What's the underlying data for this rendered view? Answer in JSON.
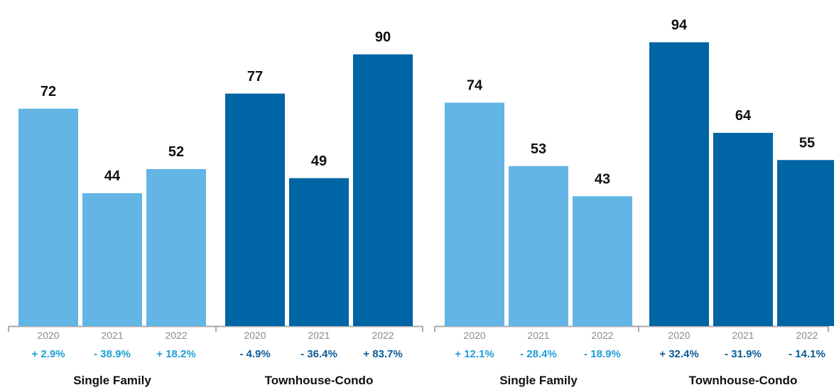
{
  "colors": {
    "single_family": "#62b5e5",
    "townhouse_condo": "#0065a4",
    "axis": "#aaaaaa"
  },
  "chart_data": [
    {
      "type": "bar",
      "categories": [
        "2020",
        "2021",
        "2022"
      ],
      "ylim": [
        0,
        100
      ],
      "groups": [
        {
          "name": "Single Family",
          "color": "#62b5e5",
          "pct_color": "#1e9fd6",
          "values": [
            72,
            44,
            52
          ],
          "changes": [
            "+ 2.9%",
            "- 38.9%",
            "+ 18.2%"
          ]
        },
        {
          "name": "Townhouse-Condo",
          "color": "#0065a4",
          "pct_color": "#0b5c96",
          "values": [
            77,
            49,
            90
          ],
          "changes": [
            "- 4.9%",
            "- 36.4%",
            "+ 83.7%"
          ]
        }
      ]
    },
    {
      "type": "bar",
      "categories": [
        "2020",
        "2021",
        "2022"
      ],
      "ylim": [
        0,
        100
      ],
      "groups": [
        {
          "name": "Single Family",
          "color": "#62b5e5",
          "pct_color": "#1e9fd6",
          "values": [
            74,
            53,
            43
          ],
          "changes": [
            "+ 12.1%",
            "- 28.4%",
            "- 18.9%"
          ]
        },
        {
          "name": "Townhouse-Condo",
          "color": "#0065a4",
          "pct_color": "#0b5c96",
          "values": [
            94,
            64,
            55
          ],
          "changes": [
            "+ 32.4%",
            "- 31.9%",
            "- 14.1%"
          ]
        }
      ]
    }
  ]
}
